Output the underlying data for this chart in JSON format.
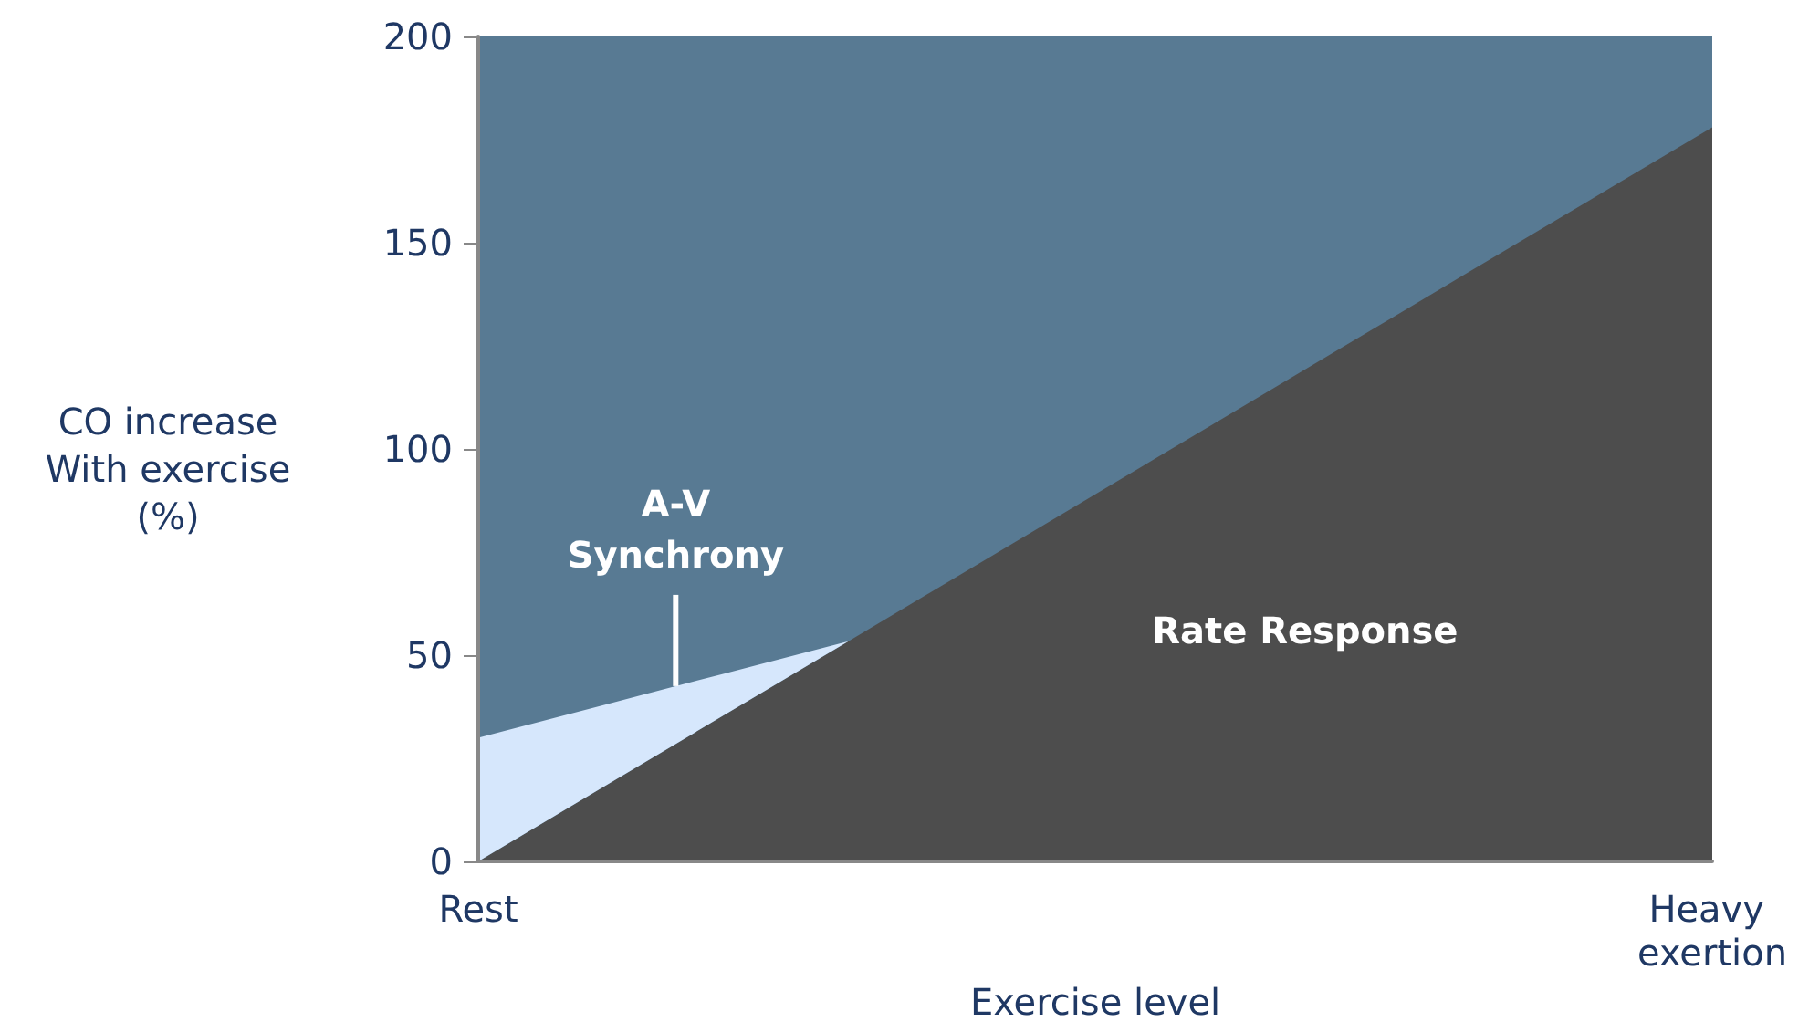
{
  "chart_data": {
    "type": "area",
    "xlabel": "Exercise level",
    "ylabel": "CO increase\nWith exercise\n(%)",
    "categories": [
      "Rest",
      null,
      null,
      null,
      null,
      null,
      null,
      null,
      null,
      null,
      "Heavy exertion"
    ],
    "stacked": true,
    "series": [
      {
        "color": "#4d4d4d",
        "values": [
          0,
          17.8,
          35.6,
          53.4,
          71.2,
          89,
          106.8,
          124.6,
          142.4,
          160.2,
          178
        ]
      },
      {
        "color": "#d6e7fc",
        "values": [
          30,
          20,
          10,
          0,
          null,
          null,
          null,
          null,
          null,
          null,
          null
        ]
      }
    ],
    "bands": [
      {
        "axis": "y",
        "from": 0,
        "to": 200,
        "color": "#587a93"
      }
    ],
    "ylim": [
      0,
      200
    ],
    "yticks": [
      0,
      50,
      100,
      150,
      200
    ],
    "grid": false,
    "annotations": [
      {
        "text": "A-V\nSynchrony",
        "y": 42.5
      },
      "Rate Response"
    ]
  }
}
